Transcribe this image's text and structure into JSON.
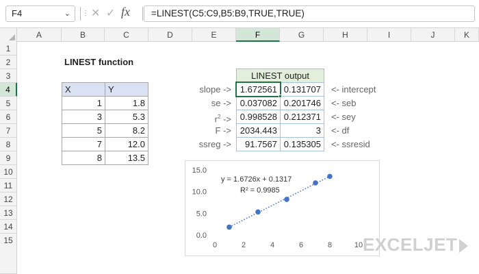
{
  "formula_bar": {
    "name_box": "F4",
    "cancel_icon": "✕",
    "enter_icon": "✓",
    "fx_label": "fx",
    "formula": "=LINEST(C5:C9,B5:B9,TRUE,TRUE)"
  },
  "columns": [
    "A",
    "B",
    "C",
    "D",
    "E",
    "F",
    "G",
    "H",
    "I",
    "J",
    "K"
  ],
  "rows": [
    "1",
    "2",
    "3",
    "4",
    "5",
    "6",
    "7",
    "8",
    "9",
    "10",
    "11",
    "12",
    "13",
    "14",
    "15"
  ],
  "title": "LINEST function",
  "data_table": {
    "headers": [
      "X",
      "Y"
    ],
    "rows": [
      {
        "x": "1",
        "y": "1.8"
      },
      {
        "x": "3",
        "y": "5.3"
      },
      {
        "x": "5",
        "y": "8.2"
      },
      {
        "x": "7",
        "y": "12.0"
      },
      {
        "x": "8",
        "y": "13.5"
      }
    ]
  },
  "output": {
    "header": "LINEST output",
    "left_labels": [
      "slope ->",
      "se ->",
      "r2 ->",
      "F ->",
      "ssreg ->"
    ],
    "right_labels": [
      "<- intercept",
      "<- seb",
      "<- sey",
      "<- df",
      "<- ssresid"
    ],
    "values": [
      [
        "1.672561",
        "0.131707"
      ],
      [
        "0.037082",
        "0.201746"
      ],
      [
        "0.998528",
        "0.212371"
      ],
      [
        "2034.443",
        "3"
      ],
      [
        "91.7567",
        "0.135305"
      ]
    ]
  },
  "chart_data": {
    "type": "scatter",
    "x": [
      1,
      3,
      5,
      7,
      8
    ],
    "y": [
      1.8,
      5.3,
      8.2,
      12.0,
      13.5
    ],
    "xlim": [
      0,
      10
    ],
    "ylim": [
      0,
      15
    ],
    "x_ticks": [
      "0",
      "2",
      "4",
      "6",
      "8",
      "10"
    ],
    "y_ticks": [
      "0.0",
      "5.0",
      "10.0",
      "15.0"
    ],
    "trendline": {
      "slope": 1.6726,
      "intercept": 0.1317
    },
    "equation": "y = 1.6726x + 0.1317",
    "r2_label": "R² = 0.9985",
    "marker_color": "#4472c4",
    "grid": false
  },
  "logo": "EXCELJET"
}
